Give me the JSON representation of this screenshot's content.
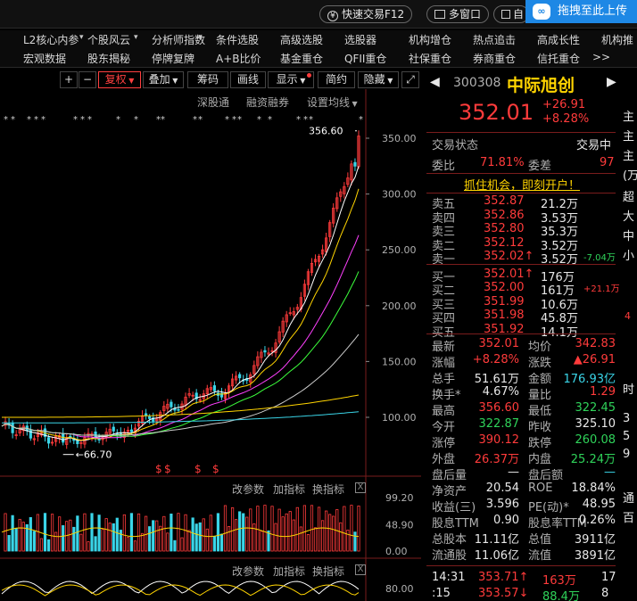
{
  "topbar": {
    "fast_trade": "快速交易F12",
    "multi_window": "多窗口",
    "cut_label": "自",
    "upload_tip": "拖拽至此上传",
    "upload_logo": "∞",
    "colors": {
      "upload_bg": "#1e88e5"
    }
  },
  "menu": {
    "row1": [
      "L2核心内参",
      "个股风云",
      "分析师指数",
      "条件选股",
      "高级选股",
      "选股器",
      "机构增仓",
      "热点追击",
      "高成长性",
      "机构推"
    ],
    "row2": [
      "宏观数据",
      "股东揭秘",
      "停牌复牌",
      "A+B比价",
      "基金重仓",
      "QFII重仓",
      "社保重仓",
      "券商重仓",
      "信托重仓",
      ">>"
    ]
  },
  "chart_toolbar": {
    "plus": "+",
    "minus": "−",
    "fuquan": "复权",
    "overlay": "叠加",
    "chips": "筹码",
    "draw": "画线",
    "display": "显示",
    "jianyue": "简约",
    "hide": "隐藏",
    "expand_icon": "expand-icon",
    "sub": {
      "deep": "深股通",
      "margin": "融资融券",
      "ma_setting": "设置均线"
    }
  },
  "subpanels": {
    "vol": {
      "params": "改参数",
      "add": "加指标",
      "switch": "换指标",
      "close": "X"
    },
    "macd": {
      "params": "改参数",
      "add": "加指标",
      "switch": "换指标",
      "close": "X"
    }
  },
  "chart_data": {
    "type": "candlestick",
    "price_ticks": [
      "350.00",
      "300.00",
      "250.00",
      "200.00",
      "150.00",
      "100.00"
    ],
    "price_tick_values": [
      350,
      300,
      250,
      200,
      150,
      100
    ],
    "high_label": "356.60",
    "high_value": 356.6,
    "low_label": "66.70",
    "low_value": 66.7,
    "vol_ticks": [
      "99.20",
      "48.90",
      "0.00"
    ],
    "vol_tick_values": [
      99.2,
      48.9,
      0
    ],
    "macd_ticks": [
      "80.00"
    ],
    "marker_symbol": "$",
    "star_symbol": "*",
    "colors": {
      "up": "#ff3b3b",
      "down": "#3ad5e8",
      "ma5": "#ffffff",
      "ma10": "#ffd400",
      "ma20": "#ff40ff",
      "ma30": "#3cff3c",
      "ma60": "#cccccc",
      "ma120": "#ffd400",
      "ma250": "#3ad5e8"
    }
  },
  "quote": {
    "code": "300308",
    "name": "中际旭创",
    "price": "352.01",
    "change": "+26.91",
    "change_pct": "+8.28%",
    "status_label": "交易状态",
    "status_value": "交易中",
    "weibi_label": "委比",
    "weibi_value": "71.81%",
    "weicha_label": "委差",
    "weicha_value": "97",
    "promo": "抓住机会，即刻开户！",
    "sells": [
      {
        "label": "卖五",
        "price": "352.87",
        "vol": "21.2万",
        "extra": ""
      },
      {
        "label": "卖四",
        "price": "352.86",
        "vol": "3.53万",
        "extra": ""
      },
      {
        "label": "卖三",
        "price": "352.80",
        "vol": "35.3万",
        "extra": ""
      },
      {
        "label": "卖二",
        "price": "352.12",
        "vol": "3.52万",
        "extra": ""
      },
      {
        "label": "卖一",
        "price": "352.02↑",
        "vol": "3.52万",
        "extra": "-7.04万"
      }
    ],
    "buys": [
      {
        "label": "买一",
        "price": "352.01↑",
        "vol": "176万",
        "extra": ""
      },
      {
        "label": "买二",
        "price": "352.00",
        "vol": "161万",
        "extra": "+21.1万"
      },
      {
        "label": "买三",
        "price": "351.99",
        "vol": "10.6万",
        "extra": ""
      },
      {
        "label": "买四",
        "price": "351.98",
        "vol": "45.8万",
        "extra": ""
      },
      {
        "label": "买五",
        "price": "351.92",
        "vol": "14.1万",
        "extra": ""
      }
    ],
    "stats": [
      [
        {
          "l": "最新",
          "v": "352.01",
          "c": "red"
        },
        {
          "l": "均价",
          "v": "342.83",
          "c": "red"
        }
      ],
      [
        {
          "l": "涨幅",
          "v": "+8.28%",
          "c": "red"
        },
        {
          "l": "涨跌",
          "v": "▲26.91",
          "c": "red"
        }
      ],
      [
        {
          "l": "总手",
          "v": "51.61万",
          "c": "white"
        },
        {
          "l": "金额",
          "v": "176.93亿",
          "c": "cyan"
        }
      ],
      [
        {
          "l": "换手*",
          "v": "4.67%",
          "c": "white"
        },
        {
          "l": "量比",
          "v": "1.29",
          "c": "red"
        }
      ],
      [
        {
          "l": "最高",
          "v": "356.60",
          "c": "red"
        },
        {
          "l": "最低",
          "v": "322.45",
          "c": "green"
        }
      ],
      [
        {
          "l": "今开",
          "v": "322.87",
          "c": "green"
        },
        {
          "l": "昨收",
          "v": "325.10",
          "c": "white"
        }
      ],
      [
        {
          "l": "涨停",
          "v": "390.12",
          "c": "red"
        },
        {
          "l": "跌停",
          "v": "260.08",
          "c": "green"
        }
      ],
      [
        {
          "l": "外盘",
          "v": "26.37万",
          "c": "red"
        },
        {
          "l": "内盘",
          "v": "25.24万",
          "c": "green"
        }
      ],
      [
        {
          "l": "盘后量",
          "v": "—",
          "c": "white"
        },
        {
          "l": "盘后额",
          "v": "—",
          "c": "cyan"
        }
      ],
      [
        {
          "l": "净资产",
          "v": "20.54",
          "c": "white"
        },
        {
          "l": "ROE",
          "v": "18.84%",
          "c": "white"
        }
      ],
      [
        {
          "l": "收益(三)",
          "v": "3.596",
          "c": "white"
        },
        {
          "l": "PE(动)*",
          "v": "48.95",
          "c": "white"
        }
      ],
      [
        {
          "l": "股息TTM",
          "v": "0.90",
          "c": "white"
        },
        {
          "l": "股息率TTM",
          "v": "0.26%",
          "c": "white"
        }
      ],
      [
        {
          "l": "总股本",
          "v": "11.11亿",
          "c": "white"
        },
        {
          "l": "总值",
          "v": "3911亿",
          "c": "white"
        }
      ],
      [
        {
          "l": "流通股",
          "v": "11.06亿",
          "c": "white"
        },
        {
          "l": "流值",
          "v": "3891亿",
          "c": "white"
        }
      ]
    ],
    "ticks": [
      {
        "t": "14:31",
        "p": "353.71↑",
        "v": "163万",
        "n": "17"
      },
      {
        "t": ":15",
        "p": "353.57↓",
        "v": "88.4万",
        "n": "8"
      }
    ],
    "colors": {
      "accent": "#ff3b3b",
      "name": "#ffd400"
    }
  },
  "edge": {
    "right_labels": [
      "主",
      "主",
      "主",
      "(万",
      "超",
      "大",
      "中",
      "小",
      "时",
      "3",
      "5",
      "9",
      "通",
      "百"
    ],
    "right_number": "4"
  }
}
